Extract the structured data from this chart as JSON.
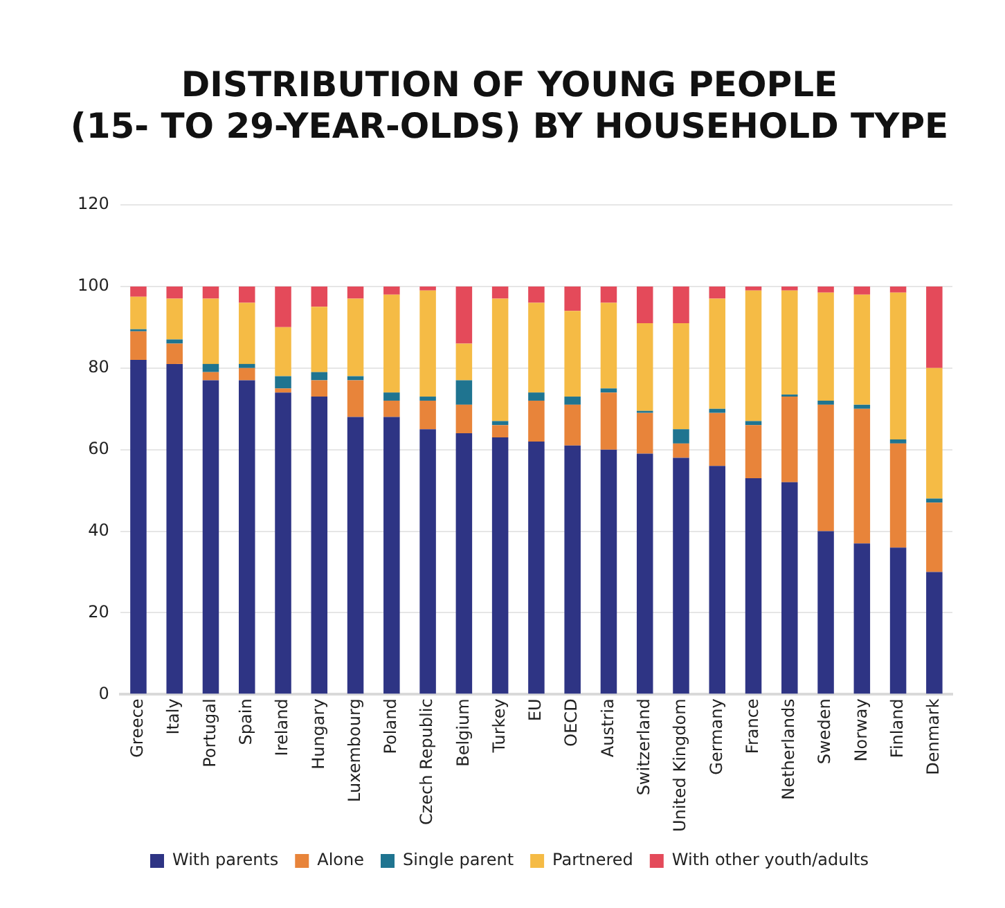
{
  "chart_data": {
    "type": "bar",
    "title": [
      "DISTRIBUTION OF YOUNG PEOPLE",
      "(15- TO 29-YEAR-OLDS) BY HOUSEHOLD TYPE"
    ],
    "categories": [
      "Greece",
      "Italy",
      "Portugal",
      "Spain",
      "Ireland",
      "Hungary",
      "Luxembourg",
      "Poland",
      "Czech Republic",
      "Belgium",
      "Turkey",
      "EU",
      "OECD",
      "Austria",
      "Switzerland",
      "United Kingdom",
      "Germany",
      "France",
      "Netherlands",
      "Sweden",
      "Norway",
      "Finland",
      "Denmark"
    ],
    "stacked": true,
    "ylim": [
      0,
      120
    ],
    "yticks": [
      0,
      20,
      40,
      60,
      80,
      100,
      120
    ],
    "grid": "y",
    "legend": "bottom",
    "series": [
      {
        "name": "With parents",
        "color": "#2e3484",
        "values": [
          82,
          81,
          77,
          77,
          74,
          73,
          68,
          68,
          65,
          64,
          63,
          62,
          61,
          60,
          59,
          58,
          56,
          53,
          52,
          40,
          37,
          36,
          30
        ]
      },
      {
        "name": "Alone",
        "color": "#e8843a",
        "values": [
          7,
          5,
          2,
          3,
          1,
          4,
          9,
          4,
          7,
          7,
          3,
          10,
          10,
          14,
          10,
          3.5,
          13,
          13,
          21,
          31,
          33,
          25.5,
          17
        ]
      },
      {
        "name": "Single parent",
        "color": "#1f7490",
        "values": [
          0.5,
          1,
          2,
          1,
          3,
          2,
          1,
          2,
          1,
          6,
          1,
          2,
          2,
          1,
          0.5,
          3.5,
          1,
          1,
          0.5,
          1,
          1,
          1,
          1
        ]
      },
      {
        "name": "Partnered",
        "color": "#f5bb45",
        "values": [
          8,
          10,
          16,
          15,
          12,
          16,
          19,
          24,
          26,
          9,
          30,
          22,
          21,
          21,
          21.5,
          26,
          27,
          32,
          25.5,
          26.5,
          27,
          36,
          32
        ]
      },
      {
        "name": "With other youth/adults",
        "color": "#e44a5a",
        "values": [
          2.5,
          3,
          3,
          4,
          10,
          5,
          3,
          2,
          1,
          14,
          3,
          4,
          6,
          4,
          9,
          9,
          3,
          1,
          1,
          1.5,
          2,
          1.5,
          20
        ]
      }
    ]
  }
}
